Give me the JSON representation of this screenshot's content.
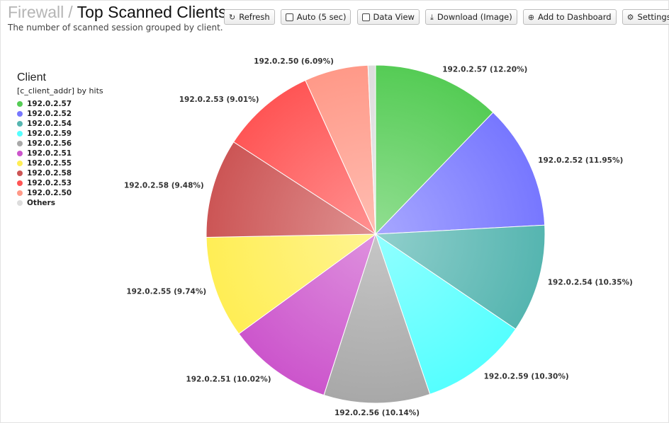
{
  "header": {
    "breadcrumb": "Firewall",
    "separator": "/",
    "title": "Top Scanned Clients",
    "subtitle": "The number of scanned session grouped by client."
  },
  "toolbar": {
    "refresh": "Refresh",
    "auto": "Auto (5 sec)",
    "data_view": "Data View",
    "download": "Download (Image)",
    "add_dashboard": "Add to Dashboard",
    "settings": "Settings"
  },
  "icons": {
    "refresh": "refresh-icon",
    "download": "download-icon",
    "add": "plus-circle-icon",
    "settings": "gear-icon"
  },
  "legend": {
    "title": "Client",
    "subtitle": "[c_client_addr] by hits",
    "placement": "left"
  },
  "chart_data": {
    "type": "pie",
    "title": "",
    "slices": [
      {
        "name": "192.0.2.57",
        "label": "192.0.2.57 (12.20%)",
        "value": 12.2,
        "color": "#55cc55"
      },
      {
        "name": "192.0.2.52",
        "label": "192.0.2.52 (11.95%)",
        "value": 11.95,
        "color": "#7777ff"
      },
      {
        "name": "192.0.2.54",
        "label": "192.0.2.54 (10.35%)",
        "value": 10.35,
        "color": "#55b5b0"
      },
      {
        "name": "192.0.2.59",
        "label": "192.0.2.59 (10.30%)",
        "value": 10.3,
        "color": "#55ffff"
      },
      {
        "name": "192.0.2.56",
        "label": "192.0.2.56 (10.14%)",
        "value": 10.14,
        "color": "#a8a8a8"
      },
      {
        "name": "192.0.2.51",
        "label": "192.0.2.51 (10.02%)",
        "value": 10.02,
        "color": "#cc55cc"
      },
      {
        "name": "192.0.2.55",
        "label": "192.0.2.55 (9.74%)",
        "value": 9.74,
        "color": "#ffee55"
      },
      {
        "name": "192.0.2.58",
        "label": "192.0.2.58 (9.48%)",
        "value": 9.48,
        "color": "#cc5555"
      },
      {
        "name": "192.0.2.53",
        "label": "192.0.2.53 (9.01%)",
        "value": 9.01,
        "color": "#ff5555"
      },
      {
        "name": "192.0.2.50",
        "label": "192.0.2.50 (6.09%)",
        "value": 6.09,
        "color": "#ff9988"
      },
      {
        "name": "Others",
        "label": "",
        "value": 0.72,
        "color": "#dddddd"
      }
    ]
  }
}
